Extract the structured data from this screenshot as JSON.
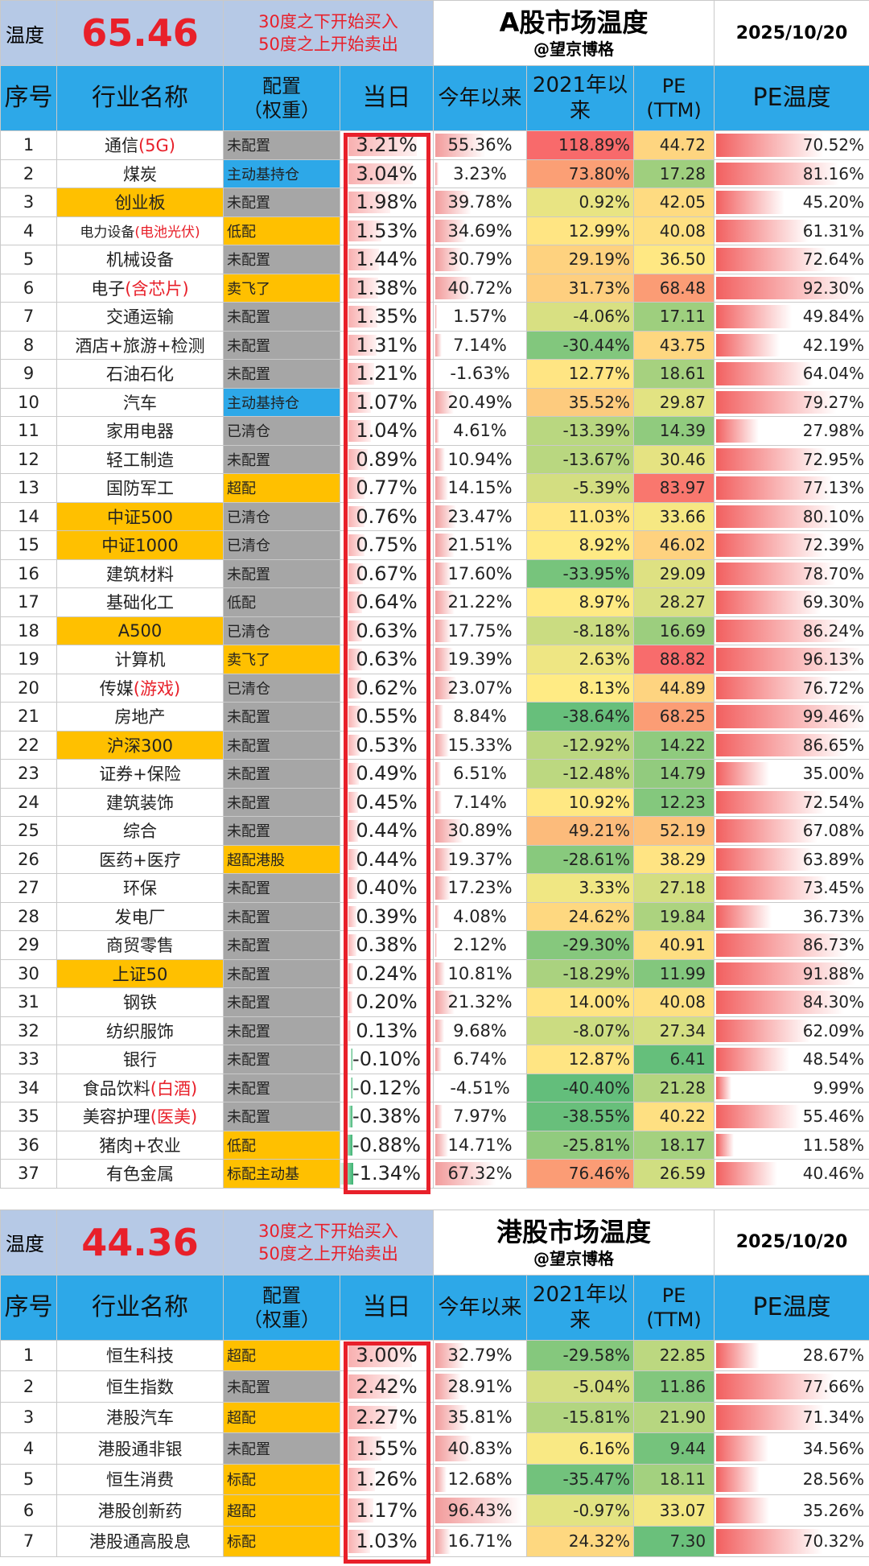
{
  "a": {
    "temp_label": "温度",
    "temp_value": "65.46",
    "rule1": "30度之下开始买入",
    "rule2": "50度之上开始卖出",
    "title": "A股市场温度",
    "author": "@望京博格",
    "date": "2025/10/20",
    "headers": {
      "idx": "序号",
      "name": "行业名称",
      "cfg1": "配置",
      "cfg2": "（权重）",
      "day": "当日",
      "ytd": "今年以来",
      "since1": "2021年以",
      "since2": "来",
      "pe1": "PE",
      "pe2": "(TTM)",
      "pet": "PE温度"
    },
    "rows": [
      {
        "idx": "1",
        "name": "通信",
        "name_red": "(5G)",
        "hl": false,
        "cfg": "未配置",
        "cfg_color": "gray",
        "day": "3.21%",
        "day_v": 3.21,
        "ytd": "55.36%",
        "ytd_v": 55.36,
        "since": "118.89%",
        "since_v": 118.89,
        "pe": "44.72",
        "pe_v": 44.72,
        "pet": "70.52%",
        "pet_v": 70.52
      },
      {
        "idx": "2",
        "name": "煤炭",
        "name_red": "",
        "hl": false,
        "cfg": "主动基持仓",
        "cfg_color": "blue",
        "day": "3.04%",
        "day_v": 3.04,
        "ytd": "3.23%",
        "ytd_v": 3.23,
        "since": "73.80%",
        "since_v": 73.8,
        "pe": "17.28",
        "pe_v": 17.28,
        "pet": "81.16%",
        "pet_v": 81.16
      },
      {
        "idx": "3",
        "name": "创业板",
        "name_red": "",
        "hl": true,
        "cfg": "未配置",
        "cfg_color": "gray",
        "day": "1.98%",
        "day_v": 1.98,
        "ytd": "39.78%",
        "ytd_v": 39.78,
        "since": "0.92%",
        "since_v": 0.92,
        "pe": "42.05",
        "pe_v": 42.05,
        "pet": "45.20%",
        "pet_v": 45.2
      },
      {
        "idx": "4",
        "name": "电力设备",
        "name_red": "(电池光伏)",
        "hl": false,
        "small": true,
        "cfg": "低配",
        "cfg_color": "orange",
        "day": "1.53%",
        "day_v": 1.53,
        "ytd": "34.69%",
        "ytd_v": 34.69,
        "since": "12.99%",
        "since_v": 12.99,
        "pe": "40.08",
        "pe_v": 40.08,
        "pet": "61.31%",
        "pet_v": 61.31
      },
      {
        "idx": "5",
        "name": "机械设备",
        "name_red": "",
        "hl": false,
        "cfg": "未配置",
        "cfg_color": "gray",
        "day": "1.44%",
        "day_v": 1.44,
        "ytd": "30.79%",
        "ytd_v": 30.79,
        "since": "29.19%",
        "since_v": 29.19,
        "pe": "36.50",
        "pe_v": 36.5,
        "pet": "72.64%",
        "pet_v": 72.64
      },
      {
        "idx": "6",
        "name": "电子",
        "name_red": "(含芯片)",
        "hl": false,
        "cfg": "卖飞了",
        "cfg_color": "orange",
        "day": "1.38%",
        "day_v": 1.38,
        "ytd": "40.72%",
        "ytd_v": 40.72,
        "since": "31.73%",
        "since_v": 31.73,
        "pe": "68.48",
        "pe_v": 68.48,
        "pet": "92.30%",
        "pet_v": 92.3
      },
      {
        "idx": "7",
        "name": "交通运输",
        "name_red": "",
        "hl": false,
        "cfg": "未配置",
        "cfg_color": "gray",
        "day": "1.35%",
        "day_v": 1.35,
        "ytd": "1.57%",
        "ytd_v": 1.57,
        "since": "-4.06%",
        "since_v": -4.06,
        "pe": "17.11",
        "pe_v": 17.11,
        "pet": "49.84%",
        "pet_v": 49.84
      },
      {
        "idx": "8",
        "name": "酒店+旅游+检测",
        "name_red": "",
        "hl": false,
        "cfg": "未配置",
        "cfg_color": "gray",
        "day": "1.31%",
        "day_v": 1.31,
        "ytd": "7.14%",
        "ytd_v": 7.14,
        "since": "-30.44%",
        "since_v": -30.44,
        "pe": "43.75",
        "pe_v": 43.75,
        "pet": "42.19%",
        "pet_v": 42.19
      },
      {
        "idx": "9",
        "name": "石油石化",
        "name_red": "",
        "hl": false,
        "cfg": "未配置",
        "cfg_color": "gray",
        "day": "1.21%",
        "day_v": 1.21,
        "ytd": "-1.63%",
        "ytd_v": -1.63,
        "since": "12.77%",
        "since_v": 12.77,
        "pe": "18.61",
        "pe_v": 18.61,
        "pet": "64.04%",
        "pet_v": 64.04
      },
      {
        "idx": "10",
        "name": "汽车",
        "name_red": "",
        "hl": false,
        "cfg": "主动基持仓",
        "cfg_color": "blue",
        "day": "1.07%",
        "day_v": 1.07,
        "ytd": "20.49%",
        "ytd_v": 20.49,
        "since": "35.52%",
        "since_v": 35.52,
        "pe": "29.87",
        "pe_v": 29.87,
        "pet": "79.27%",
        "pet_v": 79.27
      },
      {
        "idx": "11",
        "name": "家用电器",
        "name_red": "",
        "hl": false,
        "cfg": "已清仓",
        "cfg_color": "gray",
        "day": "1.04%",
        "day_v": 1.04,
        "ytd": "4.61%",
        "ytd_v": 4.61,
        "since": "-13.39%",
        "since_v": -13.39,
        "pe": "14.39",
        "pe_v": 14.39,
        "pet": "27.98%",
        "pet_v": 27.98
      },
      {
        "idx": "12",
        "name": "轻工制造",
        "name_red": "",
        "hl": false,
        "cfg": "未配置",
        "cfg_color": "gray",
        "day": "0.89%",
        "day_v": 0.89,
        "ytd": "10.94%",
        "ytd_v": 10.94,
        "since": "-13.67%",
        "since_v": -13.67,
        "pe": "30.46",
        "pe_v": 30.46,
        "pet": "72.95%",
        "pet_v": 72.95
      },
      {
        "idx": "13",
        "name": "国防军工",
        "name_red": "",
        "hl": false,
        "cfg": "超配",
        "cfg_color": "orange",
        "day": "0.77%",
        "day_v": 0.77,
        "ytd": "14.15%",
        "ytd_v": 14.15,
        "since": "-5.39%",
        "since_v": -5.39,
        "pe": "83.97",
        "pe_v": 83.97,
        "pet": "77.13%",
        "pet_v": 77.13
      },
      {
        "idx": "14",
        "name": "中证500",
        "name_red": "",
        "hl": true,
        "cfg": "已清仓",
        "cfg_color": "gray",
        "day": "0.76%",
        "day_v": 0.76,
        "ytd": "23.47%",
        "ytd_v": 23.47,
        "since": "11.03%",
        "since_v": 11.03,
        "pe": "33.66",
        "pe_v": 33.66,
        "pet": "80.10%",
        "pet_v": 80.1
      },
      {
        "idx": "15",
        "name": "中证1000",
        "name_red": "",
        "hl": true,
        "cfg": "已清仓",
        "cfg_color": "gray",
        "day": "0.75%",
        "day_v": 0.75,
        "ytd": "21.51%",
        "ytd_v": 21.51,
        "since": "8.92%",
        "since_v": 8.92,
        "pe": "46.02",
        "pe_v": 46.02,
        "pet": "72.39%",
        "pet_v": 72.39
      },
      {
        "idx": "16",
        "name": "建筑材料",
        "name_red": "",
        "hl": false,
        "cfg": "未配置",
        "cfg_color": "gray",
        "day": "0.67%",
        "day_v": 0.67,
        "ytd": "17.60%",
        "ytd_v": 17.6,
        "since": "-33.95%",
        "since_v": -33.95,
        "pe": "29.09",
        "pe_v": 29.09,
        "pet": "78.70%",
        "pet_v": 78.7
      },
      {
        "idx": "17",
        "name": "基础化工",
        "name_red": "",
        "hl": false,
        "cfg": "低配",
        "cfg_color": "gray",
        "day": "0.64%",
        "day_v": 0.64,
        "ytd": "21.22%",
        "ytd_v": 21.22,
        "since": "8.97%",
        "since_v": 8.97,
        "pe": "28.27",
        "pe_v": 28.27,
        "pet": "69.30%",
        "pet_v": 69.3
      },
      {
        "idx": "18",
        "name": "A500",
        "name_red": "",
        "hl": true,
        "cfg": "已清仓",
        "cfg_color": "gray",
        "day": "0.63%",
        "day_v": 0.63,
        "ytd": "17.75%",
        "ytd_v": 17.75,
        "since": "-8.18%",
        "since_v": -8.18,
        "pe": "16.69",
        "pe_v": 16.69,
        "pet": "86.24%",
        "pet_v": 86.24
      },
      {
        "idx": "19",
        "name": "计算机",
        "name_red": "",
        "hl": false,
        "cfg": "卖飞了",
        "cfg_color": "orange",
        "day": "0.63%",
        "day_v": 0.63,
        "ytd": "19.39%",
        "ytd_v": 19.39,
        "since": "2.63%",
        "since_v": 2.63,
        "pe": "88.82",
        "pe_v": 88.82,
        "pet": "96.13%",
        "pet_v": 96.13
      },
      {
        "idx": "20",
        "name": "传媒",
        "name_red": "(游戏)",
        "hl": false,
        "cfg": "已清仓",
        "cfg_color": "gray",
        "day": "0.62%",
        "day_v": 0.62,
        "ytd": "23.07%",
        "ytd_v": 23.07,
        "since": "8.13%",
        "since_v": 8.13,
        "pe": "44.89",
        "pe_v": 44.89,
        "pet": "76.72%",
        "pet_v": 76.72
      },
      {
        "idx": "21",
        "name": "房地产",
        "name_red": "",
        "hl": false,
        "cfg": "未配置",
        "cfg_color": "gray",
        "day": "0.55%",
        "day_v": 0.55,
        "ytd": "8.84%",
        "ytd_v": 8.84,
        "since": "-38.64%",
        "since_v": -38.64,
        "pe": "68.25",
        "pe_v": 68.25,
        "pet": "99.46%",
        "pet_v": 99.46
      },
      {
        "idx": "22",
        "name": "沪深300",
        "name_red": "",
        "hl": true,
        "cfg": "未配置",
        "cfg_color": "gray",
        "day": "0.53%",
        "day_v": 0.53,
        "ytd": "15.33%",
        "ytd_v": 15.33,
        "since": "-12.92%",
        "since_v": -12.92,
        "pe": "14.22",
        "pe_v": 14.22,
        "pet": "86.65%",
        "pet_v": 86.65
      },
      {
        "idx": "23",
        "name": "证券+保险",
        "name_red": "",
        "hl": false,
        "cfg": "未配置",
        "cfg_color": "gray",
        "day": "0.49%",
        "day_v": 0.49,
        "ytd": "6.51%",
        "ytd_v": 6.51,
        "since": "-12.48%",
        "since_v": -12.48,
        "pe": "14.79",
        "pe_v": 14.79,
        "pet": "35.00%",
        "pet_v": 35.0
      },
      {
        "idx": "24",
        "name": "建筑装饰",
        "name_red": "",
        "hl": false,
        "cfg": "未配置",
        "cfg_color": "gray",
        "day": "0.45%",
        "day_v": 0.45,
        "ytd": "7.14%",
        "ytd_v": 7.14,
        "since": "10.92%",
        "since_v": 10.92,
        "pe": "12.23",
        "pe_v": 12.23,
        "pet": "72.54%",
        "pet_v": 72.54
      },
      {
        "idx": "25",
        "name": "综合",
        "name_red": "",
        "hl": false,
        "cfg": "未配置",
        "cfg_color": "gray",
        "day": "0.44%",
        "day_v": 0.44,
        "ytd": "30.89%",
        "ytd_v": 30.89,
        "since": "49.21%",
        "since_v": 49.21,
        "pe": "52.19",
        "pe_v": 52.19,
        "pet": "67.08%",
        "pet_v": 67.08
      },
      {
        "idx": "26",
        "name": "医药+医疗",
        "name_red": "",
        "hl": false,
        "cfg": "超配港股",
        "cfg_color": "orange",
        "day": "0.44%",
        "day_v": 0.44,
        "ytd": "19.37%",
        "ytd_v": 19.37,
        "since": "-28.61%",
        "since_v": -28.61,
        "pe": "38.29",
        "pe_v": 38.29,
        "pet": "63.89%",
        "pet_v": 63.89
      },
      {
        "idx": "27",
        "name": "环保",
        "name_red": "",
        "hl": false,
        "cfg": "未配置",
        "cfg_color": "gray",
        "day": "0.40%",
        "day_v": 0.4,
        "ytd": "17.23%",
        "ytd_v": 17.23,
        "since": "3.33%",
        "since_v": 3.33,
        "pe": "27.18",
        "pe_v": 27.18,
        "pet": "73.45%",
        "pet_v": 73.45
      },
      {
        "idx": "28",
        "name": "发电厂",
        "name_red": "",
        "hl": false,
        "cfg": "未配置",
        "cfg_color": "gray",
        "day": "0.39%",
        "day_v": 0.39,
        "ytd": "4.08%",
        "ytd_v": 4.08,
        "since": "24.62%",
        "since_v": 24.62,
        "pe": "19.84",
        "pe_v": 19.84,
        "pet": "36.73%",
        "pet_v": 36.73
      },
      {
        "idx": "29",
        "name": "商贸零售",
        "name_red": "",
        "hl": false,
        "cfg": "未配置",
        "cfg_color": "gray",
        "day": "0.38%",
        "day_v": 0.38,
        "ytd": "2.12%",
        "ytd_v": 2.12,
        "since": "-29.30%",
        "since_v": -29.3,
        "pe": "40.91",
        "pe_v": 40.91,
        "pet": "86.73%",
        "pet_v": 86.73
      },
      {
        "idx": "30",
        "name": "上证50",
        "name_red": "",
        "hl": true,
        "cfg": "未配置",
        "cfg_color": "gray",
        "day": "0.24%",
        "day_v": 0.24,
        "ytd": "10.81%",
        "ytd_v": 10.81,
        "since": "-18.29%",
        "since_v": -18.29,
        "pe": "11.99",
        "pe_v": 11.99,
        "pet": "91.88%",
        "pet_v": 91.88
      },
      {
        "idx": "31",
        "name": "钢铁",
        "name_red": "",
        "hl": false,
        "cfg": "未配置",
        "cfg_color": "gray",
        "day": "0.20%",
        "day_v": 0.2,
        "ytd": "21.32%",
        "ytd_v": 21.32,
        "since": "14.00%",
        "since_v": 14.0,
        "pe": "40.08",
        "pe_v": 40.08,
        "pet": "84.30%",
        "pet_v": 84.3
      },
      {
        "idx": "32",
        "name": "纺织服饰",
        "name_red": "",
        "hl": false,
        "cfg": "未配置",
        "cfg_color": "gray",
        "day": "0.13%",
        "day_v": 0.13,
        "ytd": "9.68%",
        "ytd_v": 9.68,
        "since": "-8.07%",
        "since_v": -8.07,
        "pe": "27.34",
        "pe_v": 27.34,
        "pet": "62.09%",
        "pet_v": 62.09
      },
      {
        "idx": "33",
        "name": "银行",
        "name_red": "",
        "hl": false,
        "cfg": "未配置",
        "cfg_color": "gray",
        "day": "-0.10%",
        "day_v": -0.1,
        "ytd": "6.74%",
        "ytd_v": 6.74,
        "since": "12.87%",
        "since_v": 12.87,
        "pe": "6.41",
        "pe_v": 6.41,
        "pet": "48.54%",
        "pet_v": 48.54
      },
      {
        "idx": "34",
        "name": "食品饮料",
        "name_red": "(白酒)",
        "hl": false,
        "cfg": "未配置",
        "cfg_color": "gray",
        "day": "-0.12%",
        "day_v": -0.12,
        "ytd": "-4.51%",
        "ytd_v": -4.51,
        "since": "-40.40%",
        "since_v": -40.4,
        "pe": "21.28",
        "pe_v": 21.28,
        "pet": "9.99%",
        "pet_v": 9.99
      },
      {
        "idx": "35",
        "name": "美容护理",
        "name_red": "(医美)",
        "hl": false,
        "cfg": "未配置",
        "cfg_color": "gray",
        "day": "-0.38%",
        "day_v": -0.38,
        "ytd": "7.97%",
        "ytd_v": 7.97,
        "since": "-38.55%",
        "since_v": -38.55,
        "pe": "40.22",
        "pe_v": 40.22,
        "pet": "55.46%",
        "pet_v": 55.46
      },
      {
        "idx": "36",
        "name": "猪肉+农业",
        "name_red": "",
        "hl": false,
        "cfg": "低配",
        "cfg_color": "orange",
        "day": "-0.88%",
        "day_v": -0.88,
        "ytd": "14.71%",
        "ytd_v": 14.71,
        "since": "-25.81%",
        "since_v": -25.81,
        "pe": "18.17",
        "pe_v": 18.17,
        "pet": "11.58%",
        "pet_v": 11.58
      },
      {
        "idx": "37",
        "name": "有色金属",
        "name_red": "",
        "hl": false,
        "cfg": "标配主动基",
        "cfg_color": "orange",
        "day": "-1.34%",
        "day_v": -1.34,
        "ytd": "67.32%",
        "ytd_v": 67.32,
        "since": "76.46%",
        "since_v": 76.46,
        "pe": "26.59",
        "pe_v": 26.59,
        "pet": "40.46%",
        "pet_v": 40.46
      }
    ]
  },
  "hk": {
    "temp_label": "温度",
    "temp_value": "44.36",
    "rule1": "30度之下开始买入",
    "rule2": "50度之上开始卖出",
    "title": "港股市场温度",
    "author": "@望京博格",
    "date": "2025/10/20",
    "headers": {
      "idx": "序号",
      "name": "行业名称",
      "cfg1": "配置",
      "cfg2": "（权重）",
      "day": "当日",
      "ytd": "今年以来",
      "since1": "2021年以",
      "since2": "来",
      "pe1": "PE",
      "pe2": "(TTM)",
      "pet": "PE温度"
    },
    "rows": [
      {
        "idx": "1",
        "name": "恒生科技",
        "name_red": "",
        "hl": false,
        "cfg": "超配",
        "cfg_color": "orange",
        "day": "3.00%",
        "day_v": 3.0,
        "ytd": "32.79%",
        "ytd_v": 32.79,
        "since": "-29.58%",
        "since_v": -29.58,
        "pe": "22.85",
        "pe_v": 22.85,
        "pet": "28.67%",
        "pet_v": 28.67
      },
      {
        "idx": "2",
        "name": "恒生指数",
        "name_red": "",
        "hl": false,
        "cfg": "未配置",
        "cfg_color": "gray",
        "day": "2.42%",
        "day_v": 2.42,
        "ytd": "28.91%",
        "ytd_v": 28.91,
        "since": "-5.04%",
        "since_v": -5.04,
        "pe": "11.86",
        "pe_v": 11.86,
        "pet": "77.66%",
        "pet_v": 77.66
      },
      {
        "idx": "3",
        "name": "港股汽车",
        "name_red": "",
        "hl": false,
        "cfg": "超配",
        "cfg_color": "orange",
        "day": "2.27%",
        "day_v": 2.27,
        "ytd": "35.81%",
        "ytd_v": 35.81,
        "since": "-15.81%",
        "since_v": -15.81,
        "pe": "21.90",
        "pe_v": 21.9,
        "pet": "71.34%",
        "pet_v": 71.34
      },
      {
        "idx": "4",
        "name": "港股通非银",
        "name_red": "",
        "hl": false,
        "cfg": "未配置",
        "cfg_color": "gray",
        "day": "1.55%",
        "day_v": 1.55,
        "ytd": "40.83%",
        "ytd_v": 40.83,
        "since": "6.16%",
        "since_v": 6.16,
        "pe": "9.44",
        "pe_v": 9.44,
        "pet": "34.56%",
        "pet_v": 34.56
      },
      {
        "idx": "5",
        "name": "恒生消费",
        "name_red": "",
        "hl": false,
        "cfg": "标配",
        "cfg_color": "orange",
        "day": "1.26%",
        "day_v": 1.26,
        "ytd": "12.68%",
        "ytd_v": 12.68,
        "since": "-35.47%",
        "since_v": -35.47,
        "pe": "18.11",
        "pe_v": 18.11,
        "pet": "28.56%",
        "pet_v": 28.56
      },
      {
        "idx": "6",
        "name": "港股创新药",
        "name_red": "",
        "hl": false,
        "cfg": "超配",
        "cfg_color": "orange",
        "day": "1.17%",
        "day_v": 1.17,
        "ytd": "96.43%",
        "ytd_v": 96.43,
        "since": "-0.97%",
        "since_v": -0.97,
        "pe": "33.07",
        "pe_v": 33.07,
        "pet": "35.26%",
        "pet_v": 35.26
      },
      {
        "idx": "7",
        "name": "港股通高股息",
        "name_red": "",
        "hl": false,
        "cfg": "标配",
        "cfg_color": "orange",
        "day": "1.03%",
        "day_v": 1.03,
        "ytd": "16.71%",
        "ytd_v": 16.71,
        "since": "24.32%",
        "since_v": 24.32,
        "pe": "7.30",
        "pe_v": 7.3,
        "pet": "70.32%",
        "pet_v": 70.32
      }
    ]
  }
}
